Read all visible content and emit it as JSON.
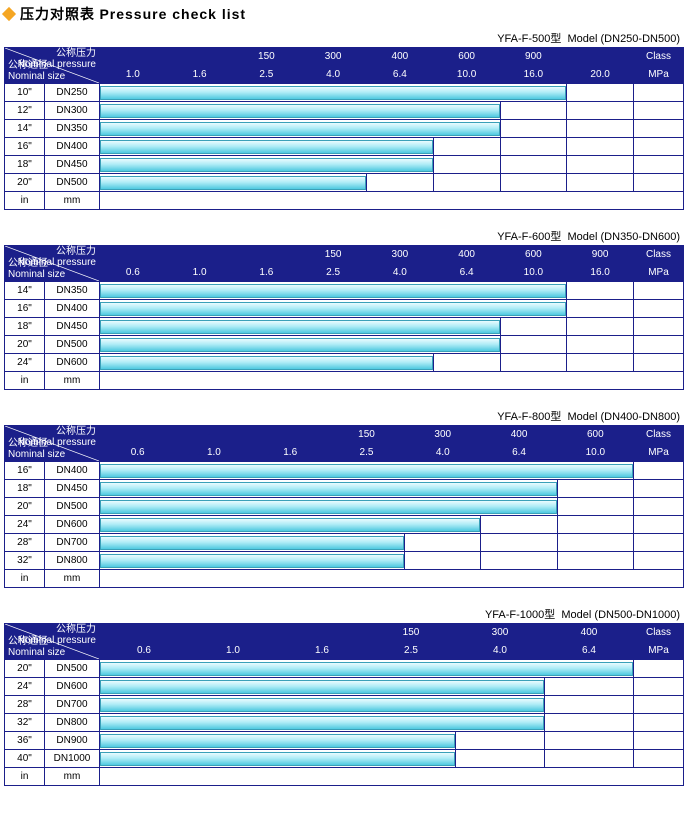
{
  "title_cn": "压力对照表",
  "title_en": "Pressure check list",
  "diamond_color": "#f5a623",
  "title_fontsize": 14,
  "header_bg": "#1b1f8a",
  "header_fg": "#ffffff",
  "cell_border": "#1b1f8a",
  "body_bg": "#ffffff",
  "bar_gradient_top": "#e9fbff",
  "bar_gradient_mid": "#aeecf6",
  "bar_gradient_bot": "#4fc9e0",
  "bar_border": "#3aa0b8",
  "diag_top_cn": "公称压力",
  "diag_top_en": "Nominal pressure",
  "diag_bot_cn": "公称通径",
  "diag_bot_en": "Nominal size",
  "footer_in": "in",
  "footer_mm": "mm",
  "class_label": "Class",
  "mpa_label": "MPa",
  "left_col1_w": 40,
  "left_col2_w": 55,
  "tables": [
    {
      "model_cn": "YFA-F-500型",
      "model_en": "Model (DN250-DN500)",
      "class_ticks": [
        "",
        "",
        "150",
        "300",
        "400",
        "600",
        "900",
        ""
      ],
      "mpa_ticks": [
        "1.0",
        "1.6",
        "2.5",
        "4.0",
        "6.4",
        "10.0",
        "16.0",
        "20.0"
      ],
      "n_cols": 8,
      "rows": [
        {
          "in": "10\"",
          "mm": "DN250",
          "bar_span": 7
        },
        {
          "in": "12\"",
          "mm": "DN300",
          "bar_span": 6
        },
        {
          "in": "14\"",
          "mm": "DN350",
          "bar_span": 6
        },
        {
          "in": "16\"",
          "mm": "DN400",
          "bar_span": 5
        },
        {
          "in": "18\"",
          "mm": "DN450",
          "bar_span": 5
        },
        {
          "in": "20\"",
          "mm": "DN500",
          "bar_span": 4
        }
      ]
    },
    {
      "model_cn": "YFA-F-600型",
      "model_en": "Model (DN350-DN600)",
      "class_ticks": [
        "",
        "",
        "",
        "150",
        "300",
        "400",
        "600",
        "900"
      ],
      "mpa_ticks": [
        "0.6",
        "1.0",
        "1.6",
        "2.5",
        "4.0",
        "6.4",
        "10.0",
        "16.0"
      ],
      "n_cols": 8,
      "rows": [
        {
          "in": "14\"",
          "mm": "DN350",
          "bar_span": 7
        },
        {
          "in": "16\"",
          "mm": "DN400",
          "bar_span": 7
        },
        {
          "in": "18\"",
          "mm": "DN450",
          "bar_span": 6
        },
        {
          "in": "20\"",
          "mm": "DN500",
          "bar_span": 6
        },
        {
          "in": "24\"",
          "mm": "DN600",
          "bar_span": 5
        }
      ]
    },
    {
      "model_cn": "YFA-F-800型",
      "model_en": "Model (DN400-DN800)",
      "class_ticks": [
        "",
        "",
        "",
        "150",
        "300",
        "400",
        "600"
      ],
      "mpa_ticks": [
        "0.6",
        "1.0",
        "1.6",
        "2.5",
        "4.0",
        "6.4",
        "10.0"
      ],
      "n_cols": 7,
      "rows": [
        {
          "in": "16\"",
          "mm": "DN400",
          "bar_span": 7
        },
        {
          "in": "18\"",
          "mm": "DN450",
          "bar_span": 6
        },
        {
          "in": "20\"",
          "mm": "DN500",
          "bar_span": 6
        },
        {
          "in": "24\"",
          "mm": "DN600",
          "bar_span": 5
        },
        {
          "in": "28\"",
          "mm": "DN700",
          "bar_span": 4
        },
        {
          "in": "32\"",
          "mm": "DN800",
          "bar_span": 4
        }
      ]
    },
    {
      "model_cn": "YFA-F-1000型",
      "model_en": "Model (DN500-DN1000)",
      "class_ticks": [
        "",
        "",
        "",
        "150",
        "300",
        "400"
      ],
      "mpa_ticks": [
        "0.6",
        "1.0",
        "1.6",
        "2.5",
        "4.0",
        "6.4"
      ],
      "n_cols": 6,
      "rows": [
        {
          "in": "20\"",
          "mm": "DN500",
          "bar_span": 6
        },
        {
          "in": "24\"",
          "mm": "DN600",
          "bar_span": 5
        },
        {
          "in": "28\"",
          "mm": "DN700",
          "bar_span": 5
        },
        {
          "in": "32\"",
          "mm": "DN800",
          "bar_span": 5
        },
        {
          "in": "36\"",
          "mm": "DN900",
          "bar_span": 4
        },
        {
          "in": "40\"",
          "mm": "DN1000",
          "bar_span": 4
        }
      ]
    }
  ]
}
